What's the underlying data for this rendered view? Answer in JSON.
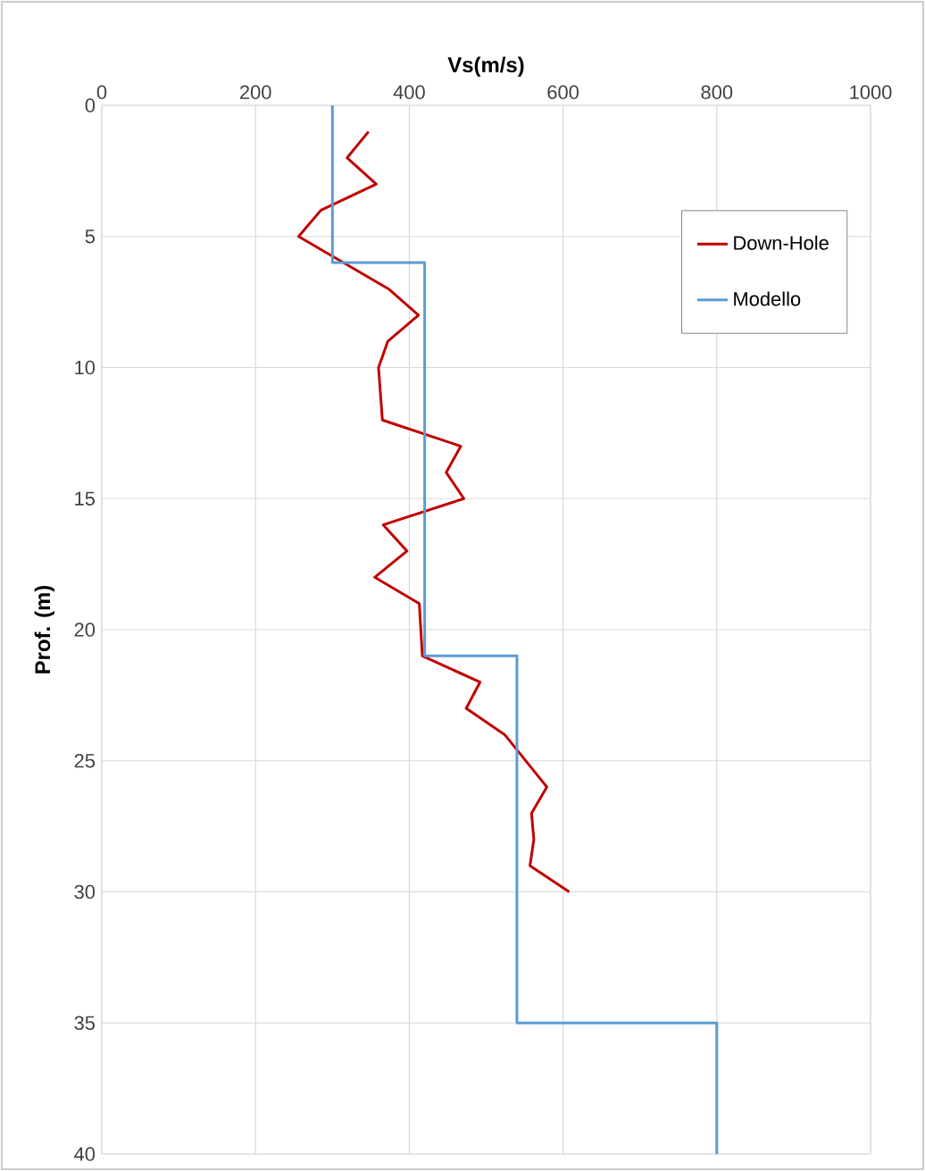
{
  "chart_data": {
    "type": "line",
    "xlabel": "Vs(m/s)",
    "ylabel": "Prof. (m)",
    "xlim": [
      0,
      1000
    ],
    "xticks": [
      0,
      200,
      400,
      600,
      800,
      1000
    ],
    "ylim": [
      40,
      0
    ],
    "yticks": [
      0,
      5,
      10,
      15,
      20,
      25,
      30,
      35,
      40
    ],
    "grid": true,
    "legend": "top right",
    "marker": "none",
    "line_style": "solid",
    "series": [
      {
        "name": "Down-Hole",
        "color": "#c00000",
        "x": [
          347,
          319,
          357,
          285,
          256,
          373,
          412,
          372,
          360,
          365,
          467,
          448,
          471,
          366,
          397,
          355,
          413,
          417,
          492,
          474,
          524,
          579,
          559,
          562,
          557,
          608
        ],
        "values": [
          1,
          2,
          3,
          4,
          5,
          7,
          8,
          9,
          10,
          12,
          13,
          14,
          15,
          16,
          17,
          18,
          19,
          21,
          22,
          23,
          24,
          26,
          27,
          28,
          29,
          30
        ]
      },
      {
        "name": "Modello",
        "color": "#5b9bd5",
        "x": [
          300,
          300,
          420,
          420,
          540,
          540,
          800,
          800
        ],
        "values": [
          0,
          6,
          6,
          21,
          21,
          35,
          35,
          40
        ]
      }
    ]
  }
}
